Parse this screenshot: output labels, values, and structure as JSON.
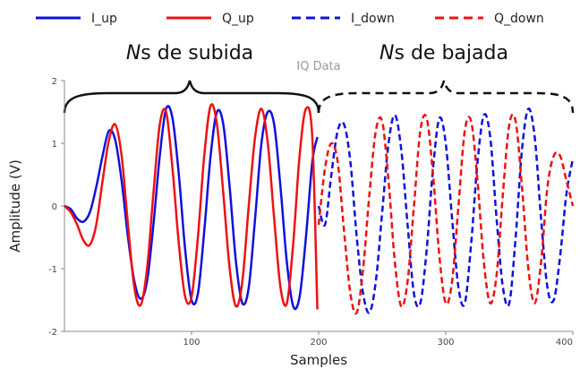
{
  "chart_data": {
    "type": "line",
    "title": "IQ Data",
    "xlabel": "Samples",
    "ylabel": "Amplitude (V)",
    "xlim": [
      0,
      400
    ],
    "ylim": [
      -2,
      2
    ],
    "x_ticks": [
      "100",
      "200",
      "300",
      "400"
    ],
    "y_ticks": [
      "2",
      "1",
      "0",
      "-1",
      "-2"
    ],
    "grid": false,
    "legend_position": "top",
    "series": [
      {
        "name": "I_up",
        "color": "#1010dd",
        "style": "solid",
        "x": [
          0,
          5,
          10,
          15,
          20,
          25,
          30,
          35,
          40,
          45,
          50,
          55,
          60,
          65,
          70,
          75,
          80,
          85,
          90,
          95,
          100,
          105,
          110,
          115,
          120,
          125,
          130,
          135,
          140,
          145,
          150,
          155,
          160,
          165,
          170,
          175,
          180,
          185,
          190,
          195,
          199
        ],
        "y": [
          0,
          -0.05,
          -0.2,
          -0.25,
          -0.1,
          0.3,
          0.8,
          1.2,
          1.05,
          0.4,
          -0.5,
          -1.2,
          -1.48,
          -1.2,
          -0.3,
          0.8,
          1.55,
          1.4,
          0.5,
          -0.7,
          -1.5,
          -1.4,
          -0.4,
          0.8,
          1.5,
          1.3,
          0.3,
          -0.9,
          -1.55,
          -1.3,
          -0.2,
          1.0,
          1.5,
          1.3,
          0.3,
          -0.9,
          -1.6,
          -1.45,
          -0.5,
          0.7,
          1.1
        ]
      },
      {
        "name": "Q_up",
        "color": "#ee1111",
        "style": "solid",
        "x": [
          0,
          5,
          10,
          15,
          20,
          25,
          30,
          35,
          40,
          45,
          50,
          55,
          60,
          65,
          70,
          75,
          80,
          85,
          90,
          95,
          100,
          105,
          110,
          115,
          120,
          125,
          130,
          135,
          140,
          145,
          150,
          155,
          160,
          165,
          170,
          175,
          180,
          185,
          190,
          195,
          199
        ],
        "y": [
          0,
          -0.1,
          -0.3,
          -0.55,
          -0.62,
          -0.3,
          0.4,
          1.05,
          1.3,
          0.8,
          -0.3,
          -1.3,
          -1.58,
          -1.0,
          0.2,
          1.3,
          1.5,
          0.6,
          -0.6,
          -1.45,
          -1.45,
          -0.5,
          0.8,
          1.6,
          1.3,
          0.2,
          -1.0,
          -1.6,
          -1.2,
          0.0,
          1.1,
          1.55,
          1.0,
          -0.2,
          -1.3,
          -1.55,
          -0.6,
          0.8,
          1.55,
          1.1,
          -1.65
        ]
      },
      {
        "name": "I_down",
        "color": "#1010dd",
        "style": "dashed",
        "x": [
          200,
          205,
          210,
          215,
          220,
          225,
          230,
          235,
          240,
          245,
          250,
          255,
          260,
          265,
          270,
          275,
          280,
          285,
          290,
          295,
          300,
          305,
          310,
          315,
          320,
          325,
          330,
          335,
          340,
          345,
          350,
          355,
          360,
          365,
          370,
          375,
          380,
          385,
          390,
          395,
          400
        ],
        "y": [
          0.0,
          -0.3,
          0.5,
          1.2,
          1.3,
          0.7,
          -0.5,
          -1.4,
          -1.7,
          -1.2,
          -0.1,
          1.0,
          1.45,
          0.9,
          -0.3,
          -1.4,
          -1.55,
          -0.7,
          0.6,
          1.4,
          1.0,
          -0.2,
          -1.3,
          -1.55,
          -0.6,
          0.7,
          1.45,
          1.1,
          -0.2,
          -1.3,
          -1.55,
          -0.5,
          0.9,
          1.55,
          1.1,
          -0.2,
          -1.3,
          -1.5,
          -0.8,
          0.2,
          0.75
        ]
      },
      {
        "name": "Q_down",
        "color": "#ee1111",
        "style": "dashed",
        "x": [
          200,
          205,
          210,
          215,
          220,
          225,
          230,
          235,
          240,
          245,
          250,
          255,
          260,
          265,
          270,
          275,
          280,
          285,
          290,
          295,
          300,
          305,
          310,
          315,
          320,
          325,
          330,
          335,
          340,
          345,
          350,
          355,
          360,
          365,
          370,
          375,
          380,
          385,
          390,
          395,
          400
        ],
        "y": [
          -0.3,
          0.6,
          1.0,
          0.7,
          -0.4,
          -1.4,
          -1.7,
          -1.0,
          0.2,
          1.2,
          1.35,
          0.4,
          -0.9,
          -1.6,
          -1.2,
          0.0,
          1.2,
          1.4,
          0.5,
          -0.8,
          -1.55,
          -1.2,
          0.0,
          1.2,
          1.35,
          0.4,
          -0.9,
          -1.55,
          -1.1,
          0.2,
          1.3,
          1.35,
          0.3,
          -1.0,
          -1.55,
          -0.9,
          0.3,
          0.8,
          0.8,
          0.4,
          0.0
        ]
      }
    ],
    "annotations": [
      {
        "italic": "N",
        "text": "s de subida",
        "x_range": [
          0,
          200
        ]
      },
      {
        "italic": "N",
        "text": "s de bajada",
        "x_range": [
          200,
          400
        ]
      }
    ]
  }
}
